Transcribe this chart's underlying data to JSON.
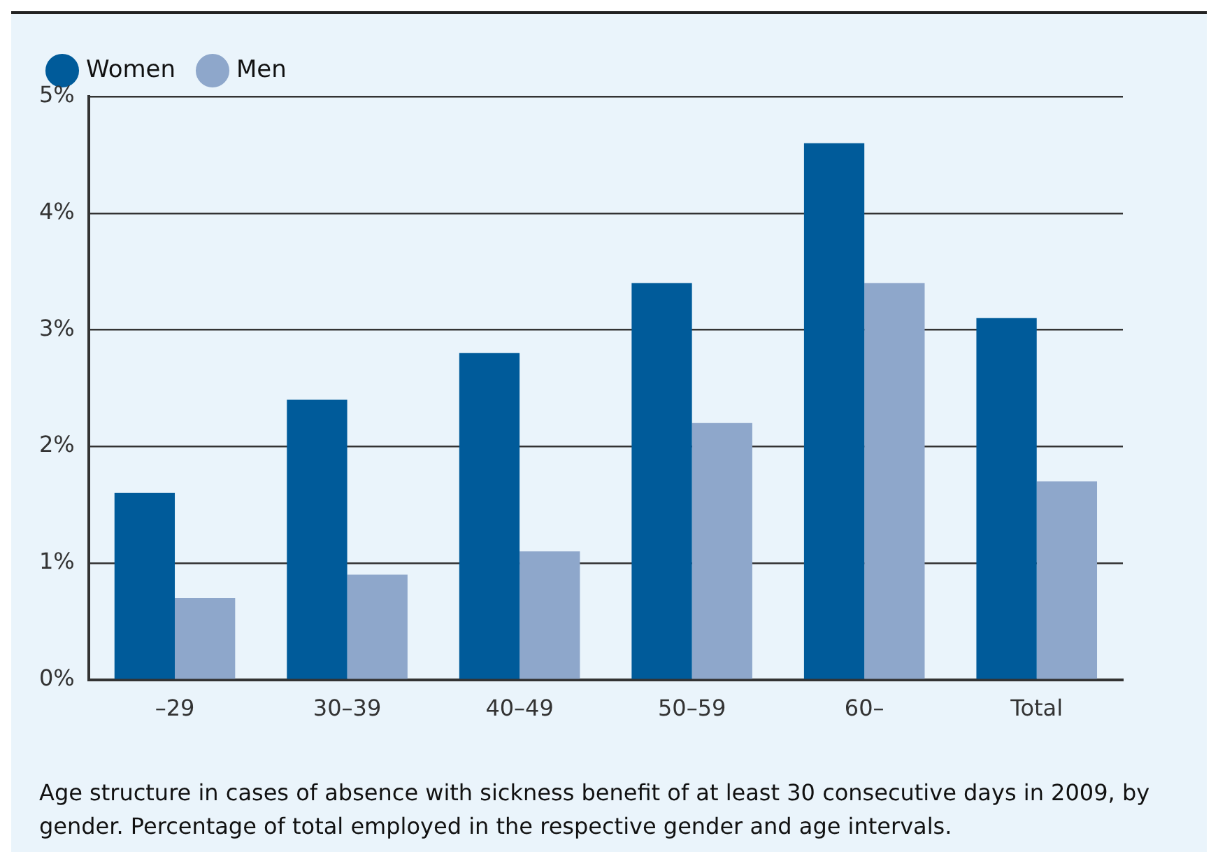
{
  "chart_data": {
    "type": "bar",
    "categories": [
      "–29",
      "30–39",
      "40–49",
      "50–59",
      "60–",
      "Total"
    ],
    "series": [
      {
        "name": "Women",
        "color": "#005b9a",
        "values": [
          1.6,
          2.4,
          2.8,
          3.4,
          4.6,
          3.1
        ]
      },
      {
        "name": "Men",
        "color": "#8ea7cb",
        "values": [
          0.7,
          0.9,
          1.1,
          2.2,
          3.4,
          1.7
        ]
      }
    ],
    "ylim": [
      0,
      5
    ],
    "yticks": [
      {
        "value": 0,
        "label": "0%"
      },
      {
        "value": 1,
        "label": "1%"
      },
      {
        "value": 2,
        "label": "2%"
      },
      {
        "value": 3,
        "label": "3%"
      },
      {
        "value": 4,
        "label": "4%"
      },
      {
        "value": 5,
        "label": "5%"
      }
    ],
    "grid": "y",
    "legend": "top left",
    "annotations": [
      "Age structure in cases of absence with sickness benefit of at least 30 consecutive days in 2009, by gender. Percentage of total employed in the respective gender and age intervals."
    ]
  }
}
